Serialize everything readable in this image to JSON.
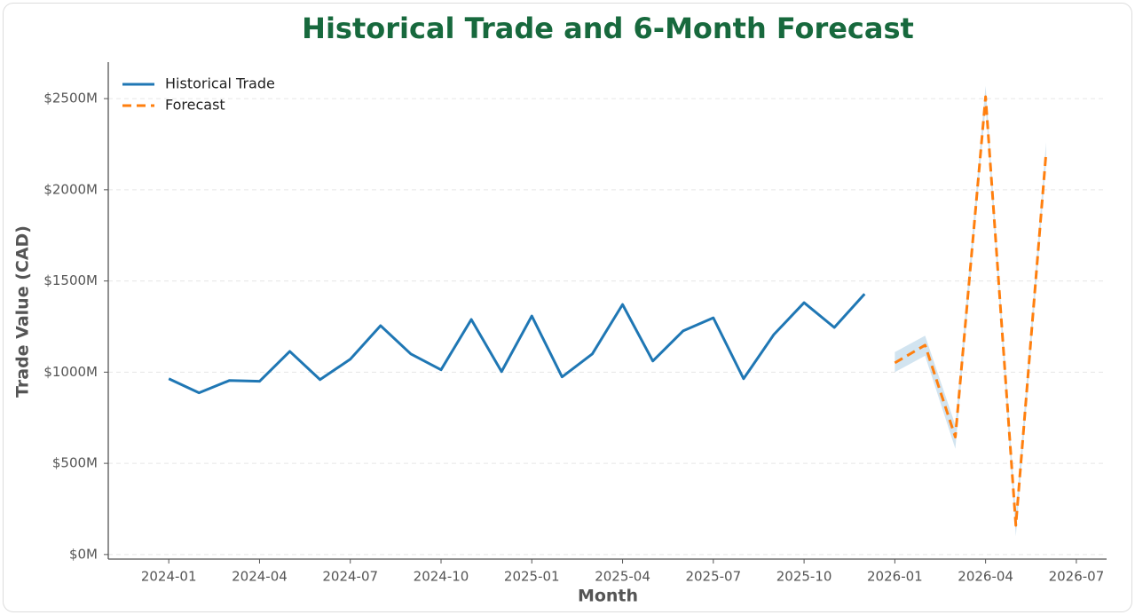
{
  "chart_data": {
    "type": "line",
    "title": "Historical Trade and 6-Month Forecast",
    "xlabel": "Month",
    "ylabel": "Trade Value (CAD)",
    "x": [
      "2024-01",
      "2024-02",
      "2024-03",
      "2024-04",
      "2024-05",
      "2024-06",
      "2024-07",
      "2024-08",
      "2024-09",
      "2024-10",
      "2024-11",
      "2024-12",
      "2025-01",
      "2025-02",
      "2025-03",
      "2025-04",
      "2025-05",
      "2025-06",
      "2025-07",
      "2025-08",
      "2025-09",
      "2025-10",
      "2025-11",
      "2025-12",
      "2026-01",
      "2026-02",
      "2026-03",
      "2026-04",
      "2026-05",
      "2026-06"
    ],
    "series": [
      {
        "name": "Historical Trade",
        "color": "#1f77b4",
        "dash": false,
        "values": [
          964,
          887,
          954,
          950,
          1114,
          959,
          1071,
          1255,
          1100,
          1013,
          1289,
          1003,
          1308,
          974,
          1100,
          1371,
          1061,
          1226,
          1298,
          964,
          1206,
          1381,
          1245,
          1429,
          null,
          null,
          null,
          null,
          null,
          null
        ]
      },
      {
        "name": "Forecast",
        "color": "#ff7f0e",
        "dash": true,
        "values": [
          null,
          null,
          null,
          null,
          null,
          null,
          null,
          null,
          null,
          null,
          null,
          null,
          null,
          null,
          null,
          null,
          null,
          null,
          null,
          null,
          null,
          null,
          null,
          null,
          1051,
          1148,
          644,
          2510,
          160,
          2204
        ],
        "lower": [
          null,
          null,
          null,
          null,
          null,
          null,
          null,
          null,
          null,
          null,
          null,
          null,
          null,
          null,
          null,
          null,
          null,
          null,
          null,
          null,
          null,
          null,
          null,
          null,
          1000,
          1090,
          580,
          2460,
          100,
          2150
        ],
        "upper": [
          null,
          null,
          null,
          null,
          null,
          null,
          null,
          null,
          null,
          null,
          null,
          null,
          null,
          null,
          null,
          null,
          null,
          null,
          null,
          null,
          null,
          null,
          null,
          null,
          1110,
          1200,
          710,
          2570,
          220,
          2260
        ],
        "band_color": "#1f77b4"
      }
    ],
    "xlim": [
      "2023-11",
      "2026-08"
    ],
    "xticks": [
      "2024-01",
      "2024-04",
      "2024-07",
      "2024-10",
      "2025-01",
      "2025-04",
      "2025-07",
      "2025-10",
      "2026-01",
      "2026-04",
      "2026-07"
    ],
    "ylim": [
      -25,
      2700
    ],
    "yticks": [
      {
        "value": 0,
        "label": "$0M"
      },
      {
        "value": 500,
        "label": "$500M"
      },
      {
        "value": 1000,
        "label": "$1000M"
      },
      {
        "value": 1500,
        "label": "$1500M"
      },
      {
        "value": 2000,
        "label": "$2000M"
      },
      {
        "value": 2500,
        "label": "$2500M"
      }
    ],
    "grid": true,
    "legend": "upper-left"
  }
}
